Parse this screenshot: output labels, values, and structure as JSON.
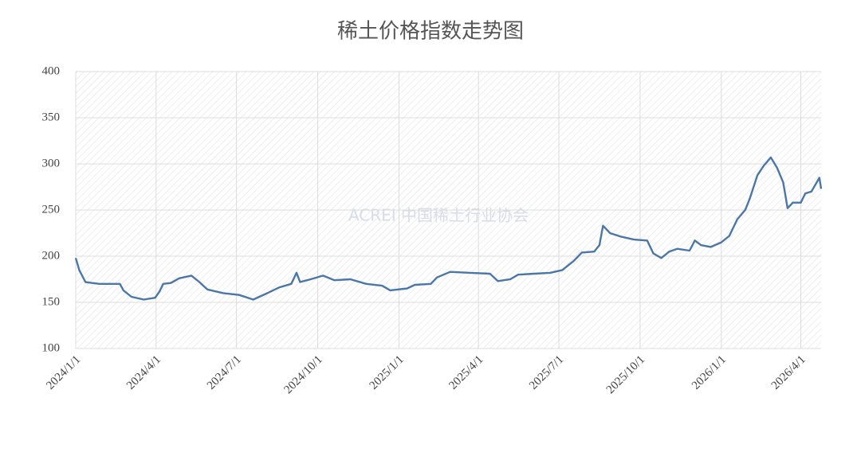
{
  "chart_data": {
    "type": "line",
    "title": "稀土价格指数走势图",
    "watermark": "ACREI 中国稀土行业协会",
    "x": [
      "2024/1/1",
      "2024/1/5",
      "2024/1/12",
      "2024/1/19",
      "2024/1/28",
      "2024/2/20",
      "2024/2/24",
      "2024/3/4",
      "2024/3/18",
      "2024/3/31",
      "2024/4/5",
      "2024/4/9",
      "2024/4/18",
      "2024/4/27",
      "2024/5/11",
      "2024/5/20",
      "2024/5/29",
      "2024/6/16",
      "2024/7/4",
      "2024/7/20",
      "2024/8/5",
      "2024/8/18",
      "2024/9/1",
      "2024/9/7",
      "2024/9/11",
      "2024/9/23",
      "2024/10/7",
      "2024/10/20",
      "2024/11/7",
      "2024/11/25",
      "2024/12/13",
      "2024/12/22",
      "2025/1/10",
      "2025/1/19",
      "2025/2/6",
      "2025/2/13",
      "2025/2/28",
      "2025/3/23",
      "2025/4/14",
      "2025/4/23",
      "2025/5/7",
      "2025/5/16",
      "2025/6/3",
      "2025/6/21",
      "2025/7/5",
      "2025/7/18",
      "2025/7/27",
      "2025/8/10",
      "2025/8/16",
      "2025/8/20",
      "2025/8/28",
      "2025/9/10",
      "2025/9/24",
      "2025/10/9",
      "2025/10/16",
      "2025/10/25",
      "2025/11/3",
      "2025/11/12",
      "2025/11/26",
      "2025/12/2",
      "2025/12/9",
      "2025/12/20",
      "2026/1/1",
      "2026/1/10",
      "2026/1/19",
      "2026/1/28",
      "2026/2/2",
      "2026/2/11",
      "2026/2/18",
      "2026/2/26",
      "2026/3/5",
      "2026/3/12",
      "2026/3/17",
      "2026/3/23",
      "2026/4/1",
      "2026/4/6",
      "2026/4/13",
      "2026/4/22",
      "2026/4/24"
    ],
    "series": [
      {
        "name": "稀土价格指数",
        "color": "#4a76a8",
        "values": [
          198,
          185,
          172,
          171,
          170,
          170,
          163,
          156,
          153,
          155,
          162,
          170,
          171,
          176,
          179,
          172,
          164,
          160,
          158,
          153,
          160,
          166,
          170,
          182,
          172,
          175,
          179,
          174,
          175,
          170,
          168,
          163,
          165,
          169,
          170,
          177,
          183,
          182,
          181,
          173,
          175,
          180,
          181,
          182,
          185,
          195,
          204,
          205,
          212,
          233,
          225,
          221,
          218,
          217,
          203,
          198,
          205,
          208,
          206,
          217,
          212,
          210,
          215,
          222,
          240,
          250,
          262,
          288,
          298,
          307,
          296,
          280,
          252,
          258,
          258,
          268,
          270,
          285,
          273
        ]
      }
    ],
    "xlim": [
      "2024/1/1",
      "2026/4/24"
    ],
    "xticks": [
      "2024/1/1",
      "2024/4/1",
      "2024/7/1",
      "2024/10/1",
      "2025/1/1",
      "2025/4/1",
      "2025/7/1",
      "2025/10/1",
      "2026/1/1",
      "2026/4/1"
    ],
    "ylim": [
      100,
      400
    ],
    "yticks": [
      100,
      150,
      200,
      250,
      300,
      350,
      400
    ],
    "grid": true
  }
}
